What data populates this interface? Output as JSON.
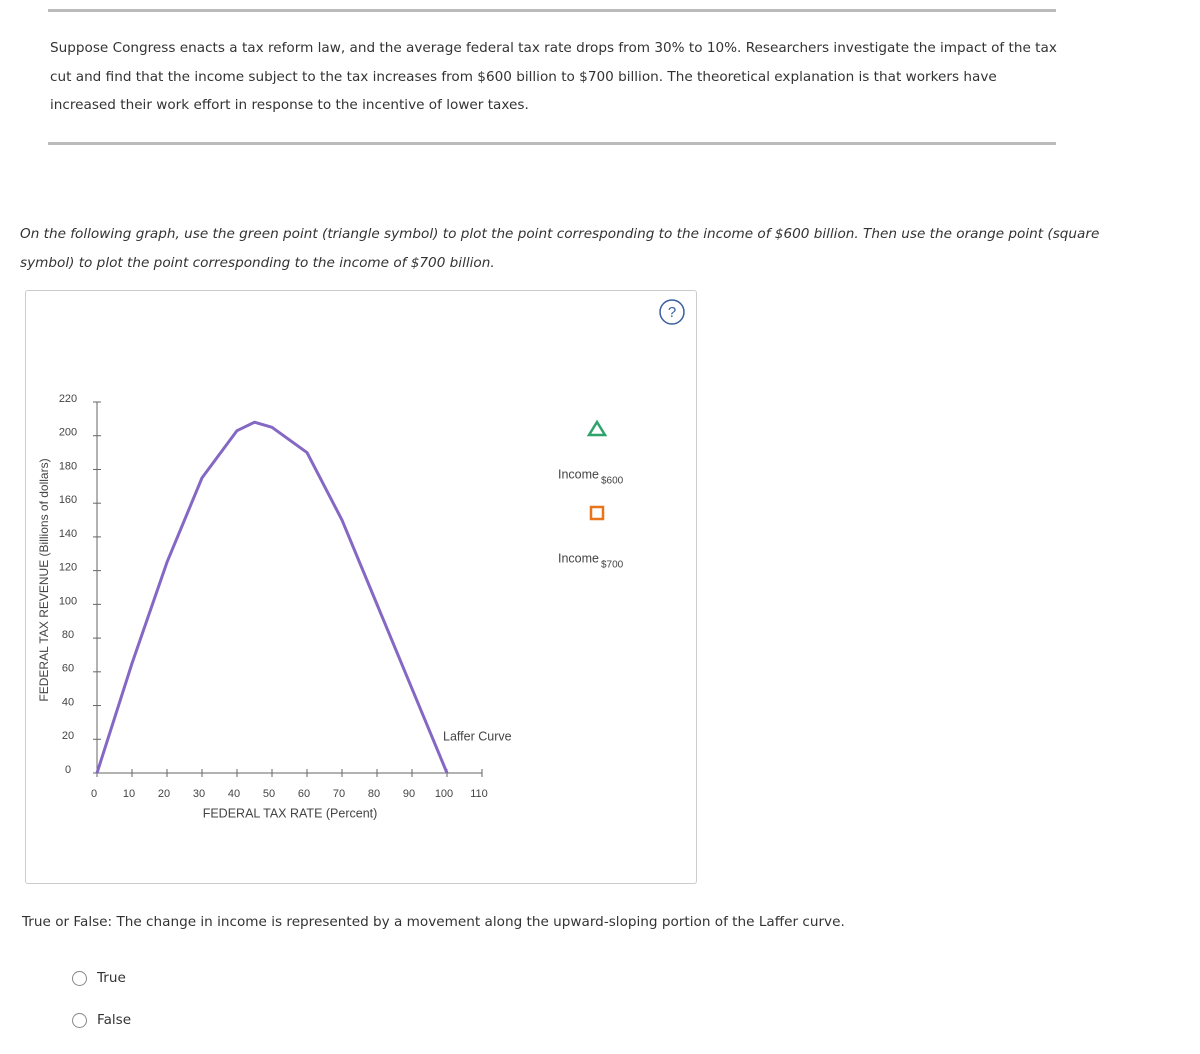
{
  "problem": {
    "text": "Suppose Congress enacts a tax reform law, and the average federal tax rate drops from 30% to 10%. Researchers investigate the impact of the tax cut and find that the income subject to the tax increases from $600 billion to $700 billion. The theoretical explanation is that workers have increased their work effort in response to the incentive of lower taxes."
  },
  "instruction": {
    "text": "On the following graph, use the green point (triangle symbol) to plot the point corresponding to the income of $600 billion. Then use the orange point (square symbol) to plot the point corresponding to the income of $700 billion."
  },
  "graph": {
    "type": "line",
    "help": "?",
    "y_label": "FEDERAL TAX REVENUE (Billions of dollars)",
    "x_label": "FEDERAL TAX RATE (Percent)",
    "xlim": [
      0,
      110
    ],
    "xticks": [
      0,
      10,
      20,
      30,
      40,
      50,
      60,
      70,
      80,
      90,
      100,
      110
    ],
    "ylim": [
      0,
      220
    ],
    "yticks": [
      0,
      20,
      40,
      60,
      80,
      100,
      120,
      140,
      160,
      180,
      200,
      220
    ],
    "series": [
      {
        "name": "Laffer Curve",
        "color": "#8468c4",
        "x": [
          0,
          10,
          20,
          30,
          40,
          45,
          50,
          60,
          70,
          80,
          90,
          100
        ],
        "values": [
          0,
          65,
          125,
          175,
          203,
          208,
          205,
          190,
          150,
          100,
          50,
          0
        ]
      }
    ],
    "tools": [
      {
        "label": "Income",
        "subscript": "$600",
        "color": "#2fa36b",
        "shape": "triangle"
      },
      {
        "label": "Income",
        "subscript": "$700",
        "color": "#e8751a",
        "shape": "square"
      }
    ]
  },
  "question": {
    "text": "True or False: The change in income is represented by a movement along the upward-sloping portion of the Laffer curve.",
    "options": [
      "True",
      "False"
    ]
  }
}
